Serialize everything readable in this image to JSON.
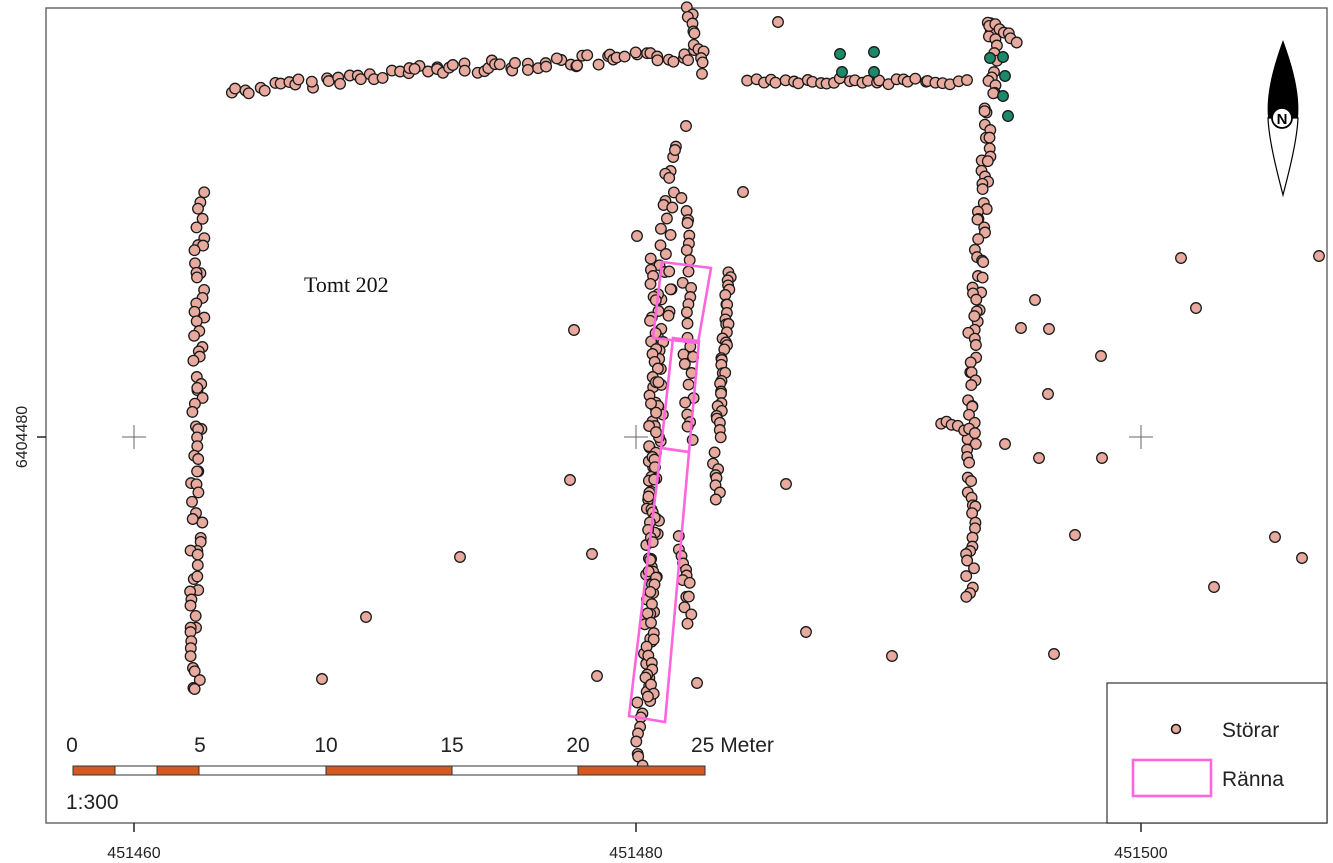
{
  "map": {
    "area_label": "Tomt 202",
    "x_ticks": [
      "451460",
      "451480",
      "451500"
    ],
    "y_tick": "6404480",
    "scale_ratio": "1:300",
    "scale_numbers": [
      "0",
      "5",
      "10",
      "15",
      "20",
      "25 Meter"
    ],
    "north_letter": "N",
    "colors": {
      "post": "#e8aa9e",
      "post_alt": "#1c8a6a",
      "channel": "#ff66dd",
      "scale_orange": "#d4581f",
      "frame": "#555555"
    }
  },
  "legend": {
    "items": [
      {
        "label": "Störar",
        "symbol": "circle"
      },
      {
        "label": "Ränna",
        "symbol": "rectangle"
      }
    ]
  }
}
